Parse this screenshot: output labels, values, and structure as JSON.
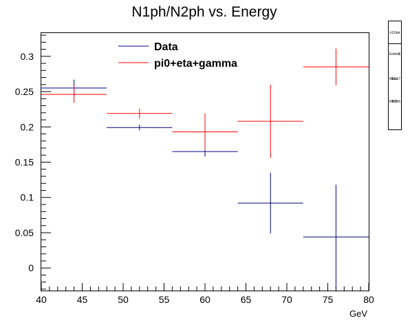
{
  "chart_data": {
    "type": "scatter",
    "title": "N1ph/N2ph vs. Energy",
    "xlabel": "GeV",
    "ylabel": "",
    "xlim": [
      40,
      80
    ],
    "ylim": [
      -0.032,
      0.333
    ],
    "x_ticks": [
      40,
      45,
      50,
      55,
      60,
      65,
      70,
      75,
      80
    ],
    "x_tick_labels": [
      "40",
      "45",
      "50",
      "55",
      "60",
      "65",
      "70",
      "75",
      "80"
    ],
    "y_ticks": [
      0,
      0.05,
      0.1,
      0.15,
      0.2,
      0.25,
      0.3
    ],
    "y_tick_labels": [
      "0",
      "0.05",
      "0.1",
      "0.15",
      "0.2",
      "0.25",
      "0.3"
    ],
    "legend_position": "top-center",
    "series": [
      {
        "name": "Data",
        "color": "#00007f",
        "points": [
          {
            "x": 44,
            "xerr": 4,
            "y": 0.255,
            "yerr": 0.012
          },
          {
            "x": 52,
            "xerr": 4,
            "y": 0.199,
            "yerr": 0.004
          },
          {
            "x": 60,
            "xerr": 4,
            "y": 0.165,
            "yerr": 0.007
          },
          {
            "x": 68,
            "xerr": 4,
            "y": 0.092,
            "yerr": 0.043
          },
          {
            "x": 76,
            "xerr": 4,
            "y": 0.044,
            "yerr": 0.074
          }
        ]
      },
      {
        "name": "pi0+eta+gamma",
        "color": "#ff0000",
        "points": [
          {
            "x": 44,
            "xerr": 4,
            "y": 0.246,
            "yerr": 0.012
          },
          {
            "x": 52,
            "xerr": 4,
            "y": 0.219,
            "yerr": 0.007
          },
          {
            "x": 60,
            "xerr": 4,
            "y": 0.193,
            "yerr": 0.026
          },
          {
            "x": 68,
            "xerr": 4,
            "y": 0.208,
            "yerr": 0.052
          },
          {
            "x": 76,
            "xerr": 4,
            "y": 0.285,
            "yerr": 0.026
          }
        ]
      }
    ],
    "stats_box": {
      "name": "n12dat",
      "lines": [
        "Entries",
        "Mean",
        "RMS"
      ],
      "values": [
        "5",
        "53.17",
        "9.796"
      ]
    }
  }
}
